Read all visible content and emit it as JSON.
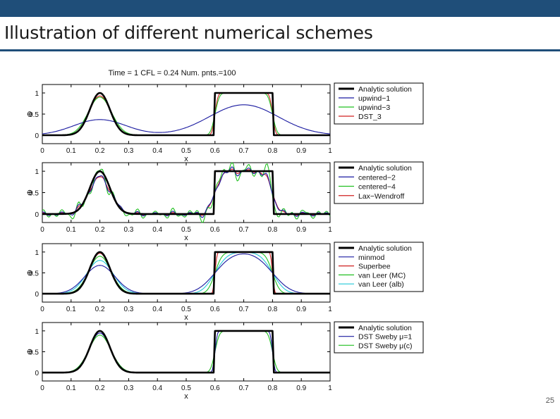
{
  "slide": {
    "title": "Illustration of different numerical schemes",
    "page_number": "25"
  },
  "colors": {
    "header_bar": "#1f4e79",
    "analytic": "#000000",
    "blue": "#1a1aa0",
    "green": "#22c022",
    "red": "#d02020",
    "cyan": "#22c8d8",
    "magenta": "#a020a0"
  },
  "chart_data": [
    {
      "type": "line",
      "title": "Time = 1    CFL = 0.24    Num. pnts.=100",
      "xlabel": "x",
      "ylabel": "Φ",
      "xlim": [
        0,
        1
      ],
      "ylim": [
        -0.2,
        1.2
      ],
      "xticks": [
        "0",
        "0.1",
        "0.2",
        "0.3",
        "0.4",
        "0.5",
        "0.6",
        "0.7",
        "0.8",
        "0.9",
        "1"
      ],
      "yticks": [
        "0",
        "0.5",
        "1"
      ],
      "legend_position": "right",
      "series": [
        {
          "name": "Analytic solution",
          "color": "#000000",
          "kind": "exact"
        },
        {
          "name": "upwind−1",
          "color": "#1a1aa0",
          "kind": "diffusive",
          "sigma_mult": 2.6,
          "amp": 0.37,
          "box_amp": 0.72,
          "smear": 0.1
        },
        {
          "name": "upwind−3",
          "color": "#22c022",
          "kind": "smooth",
          "sigma_mult": 1.15,
          "amp": 0.9,
          "smear": 0.012
        },
        {
          "name": "DST_3",
          "color": "#d02020",
          "kind": "smooth",
          "sigma_mult": 1.05,
          "amp": 0.93,
          "smear": 0.008
        }
      ]
    },
    {
      "type": "line",
      "title": "",
      "xlabel": "x",
      "ylabel": "Φ",
      "xlim": [
        0,
        1
      ],
      "ylim": [
        -0.2,
        1.2
      ],
      "xticks": [
        "0",
        "0.1",
        "0.2",
        "0.3",
        "0.4",
        "0.5",
        "0.6",
        "0.7",
        "0.8",
        "0.9",
        "1"
      ],
      "yticks": [
        "0",
        "0.5",
        "1"
      ],
      "legend_position": "right",
      "series": [
        {
          "name": "Analytic solution",
          "color": "#000000",
          "kind": "exact"
        },
        {
          "name": "centered−2",
          "color": "#1a1aa0",
          "kind": "oscillatory",
          "sigma_mult": 1.1,
          "amp": 0.85,
          "smear": 0.02,
          "noise": 0.12
        },
        {
          "name": "centered−4",
          "color": "#22c022",
          "kind": "oscillatory",
          "sigma_mult": 1.0,
          "amp": 0.95,
          "smear": 0.01,
          "noise": 0.25
        },
        {
          "name": "Lax−Wendroff",
          "color": "#d02020",
          "kind": "oscillatory",
          "sigma_mult": 1.1,
          "amp": 0.85,
          "smear": 0.02,
          "noise": 0.06
        }
      ]
    },
    {
      "type": "line",
      "title": "",
      "xlabel": "x",
      "ylabel": "Φ",
      "xlim": [
        0,
        1
      ],
      "ylim": [
        -0.2,
        1.2
      ],
      "xticks": [
        "0",
        "0.1",
        "0.2",
        "0.3",
        "0.4",
        "0.5",
        "0.6",
        "0.7",
        "0.8",
        "0.9",
        "1"
      ],
      "yticks": [
        "0",
        "0.5",
        "1"
      ],
      "legend_position": "right",
      "series": [
        {
          "name": "Analytic solution",
          "color": "#000000",
          "kind": "exact"
        },
        {
          "name": "minmod",
          "color": "#1a1aa0",
          "kind": "smooth",
          "sigma_mult": 1.5,
          "amp": 0.68,
          "smear": 0.05
        },
        {
          "name": "Superbee",
          "color": "#d02020",
          "kind": "smooth",
          "sigma_mult": 1.0,
          "amp": 0.97,
          "smear": 0.005
        },
        {
          "name": "van Leer (MC)",
          "color": "#22c022",
          "kind": "smooth",
          "sigma_mult": 1.1,
          "amp": 0.9,
          "smear": 0.02
        },
        {
          "name": "van Leer (alb)",
          "color": "#22c8d8",
          "kind": "smooth",
          "sigma_mult": 1.3,
          "amp": 0.8,
          "smear": 0.035
        }
      ]
    },
    {
      "type": "line",
      "title": "",
      "xlabel": "x",
      "ylabel": "Φ",
      "xlim": [
        0,
        1
      ],
      "ylim": [
        -0.2,
        1.2
      ],
      "xticks": [
        "0",
        "0.1",
        "0.2",
        "0.3",
        "0.4",
        "0.5",
        "0.6",
        "0.7",
        "0.8",
        "0.9",
        "1"
      ],
      "yticks": [
        "0",
        "0.5",
        "1"
      ],
      "legend_position": "right",
      "series": [
        {
          "name": "Analytic solution",
          "color": "#000000",
          "kind": "exact"
        },
        {
          "name": "DST Sweby μ=1",
          "color": "#1a1aa0",
          "kind": "smooth",
          "sigma_mult": 1.05,
          "amp": 0.95,
          "smear": 0.006
        },
        {
          "name": "DST Sweby μ(c)",
          "color": "#22c022",
          "kind": "smooth",
          "sigma_mult": 1.1,
          "amp": 0.9,
          "smear": 0.012
        }
      ]
    }
  ]
}
